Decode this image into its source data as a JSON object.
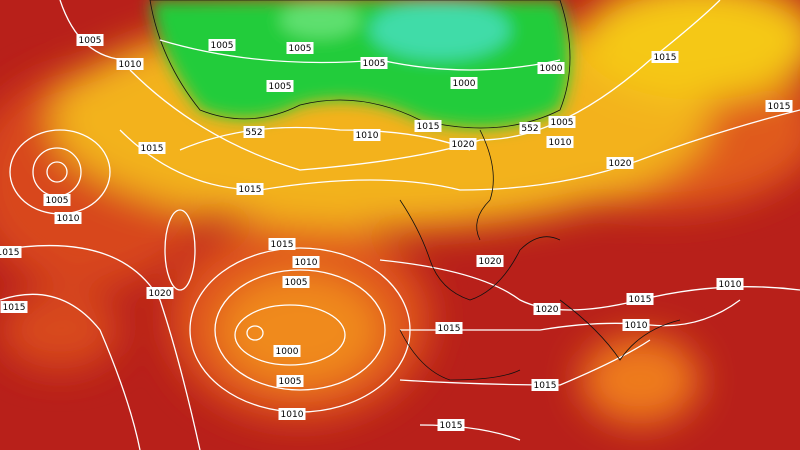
{
  "isobar_labels": [
    "1005",
    "1010",
    "1005",
    "1005",
    "1005",
    "1005",
    "1000",
    "1000",
    "1015",
    "1015",
    "552",
    "1010",
    "1015",
    "552",
    "1005",
    "1020",
    "1010",
    "1015",
    "1020",
    "1015",
    "1005",
    "1010",
    "1015",
    "1010",
    "1015",
    "1005",
    "1020",
    "1020",
    "1015",
    "1015",
    "1010",
    "1010",
    "1020",
    "1015",
    "1000",
    "1005",
    "1015",
    "1010",
    "1015"
  ]
}
